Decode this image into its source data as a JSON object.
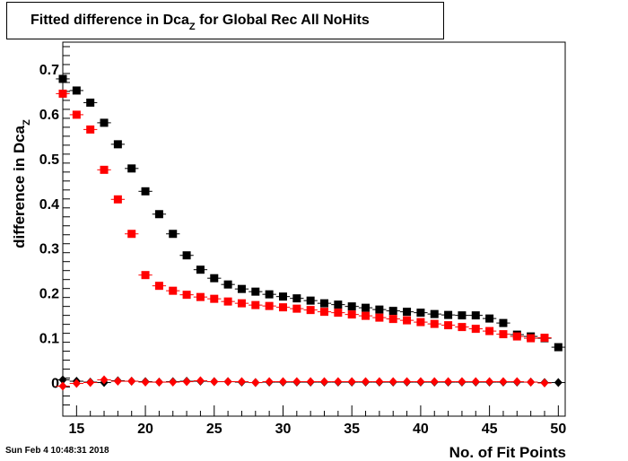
{
  "timestamp": "Sun Feb  4 10:48:31 2018",
  "chart_data": {
    "type": "scatter",
    "title": {
      "main": "Fitted difference in Dca",
      "sub": "Z",
      "rest": " for Global Rec All NoHits"
    },
    "xlabel": "No. of Fit Points",
    "ylabel": {
      "main": "difference in Dca",
      "sub": "Z"
    },
    "xlim": [
      14,
      50.5
    ],
    "ylim": [
      -0.075,
      0.76
    ],
    "xticks": [
      15,
      20,
      25,
      30,
      35,
      40,
      45,
      50
    ],
    "yticks": [
      0,
      0.1,
      0.2,
      0.3,
      0.4,
      0.5,
      0.6,
      0.7
    ],
    "ytick_labels": [
      "0",
      "0.1",
      "0.2",
      "0.3",
      "0.4",
      "0.5",
      "0.6",
      "0.7"
    ],
    "series": [
      {
        "color": "#000000",
        "marker": "square",
        "x": [
          14,
          15,
          16,
          17,
          18,
          19,
          20,
          21,
          22,
          23,
          24,
          25,
          26,
          27,
          28,
          29,
          30,
          31,
          32,
          33,
          34,
          35,
          36,
          37,
          38,
          39,
          40,
          41,
          42,
          43,
          44,
          45,
          46,
          47,
          48,
          49,
          50
        ],
        "y": [
          0.678,
          0.652,
          0.625,
          0.58,
          0.532,
          0.478,
          0.427,
          0.376,
          0.332,
          0.284,
          0.252,
          0.233,
          0.219,
          0.209,
          0.203,
          0.197,
          0.192,
          0.188,
          0.183,
          0.177,
          0.174,
          0.17,
          0.167,
          0.163,
          0.16,
          0.158,
          0.156,
          0.153,
          0.151,
          0.15,
          0.15,
          0.143,
          0.133,
          0.107,
          0.103,
          0.099,
          0.079
        ]
      },
      {
        "color": "#ff0000",
        "marker": "square",
        "x": [
          14,
          15,
          16,
          17,
          18,
          19,
          20,
          21,
          22,
          23,
          24,
          25,
          26,
          27,
          28,
          29,
          30,
          31,
          32,
          33,
          34,
          35,
          36,
          37,
          38,
          39,
          40,
          41,
          42,
          43,
          44,
          45,
          46,
          47,
          48,
          49
        ],
        "y": [
          0.645,
          0.598,
          0.565,
          0.475,
          0.409,
          0.332,
          0.24,
          0.216,
          0.205,
          0.196,
          0.191,
          0.187,
          0.181,
          0.177,
          0.173,
          0.171,
          0.168,
          0.165,
          0.162,
          0.158,
          0.156,
          0.152,
          0.149,
          0.145,
          0.142,
          0.139,
          0.135,
          0.131,
          0.128,
          0.124,
          0.12,
          0.115,
          0.108,
          0.103,
          0.099,
          0.1
        ]
      },
      {
        "color": "#000000",
        "marker": "diamond",
        "x": [
          14,
          15,
          16,
          17,
          18,
          19,
          20,
          21,
          22,
          23,
          24,
          25,
          26,
          27,
          28,
          29,
          30,
          31,
          32,
          33,
          34,
          35,
          36,
          37,
          38,
          39,
          40,
          41,
          42,
          43,
          44,
          45,
          46,
          47,
          48,
          49,
          50
        ],
        "y": [
          0.006,
          0.003,
          0.001,
          0.0,
          0.004,
          0.003,
          0.002,
          0.001,
          0.002,
          0.003,
          0.003,
          0.002,
          0.002,
          0.001,
          0.0,
          0.001,
          0.001,
          0.001,
          0.001,
          0.001,
          0.001,
          0.001,
          0.001,
          0.001,
          0.001,
          0.001,
          0.001,
          0.001,
          0.001,
          0.001,
          0.001,
          0.001,
          0.001,
          0.001,
          0.001,
          0.0,
          0.0
        ]
      },
      {
        "color": "#ff0000",
        "marker": "diamond",
        "x": [
          14,
          15,
          16,
          17,
          18,
          19,
          20,
          21,
          22,
          23,
          24,
          25,
          26,
          27,
          28,
          29,
          30,
          31,
          32,
          33,
          34,
          35,
          36,
          37,
          38,
          39,
          40,
          41,
          42,
          43,
          44,
          45,
          46,
          47,
          48,
          49
        ],
        "y": [
          -0.008,
          -0.002,
          0.0,
          0.006,
          0.003,
          0.003,
          0.001,
          0.001,
          0.001,
          0.002,
          0.004,
          0.002,
          0.002,
          0.002,
          0.0,
          0.002,
          0.002,
          0.002,
          0.002,
          0.002,
          0.002,
          0.002,
          0.002,
          0.002,
          0.002,
          0.002,
          0.002,
          0.002,
          0.002,
          0.002,
          0.002,
          0.002,
          0.002,
          0.002,
          0.001,
          -0.001
        ]
      }
    ]
  }
}
